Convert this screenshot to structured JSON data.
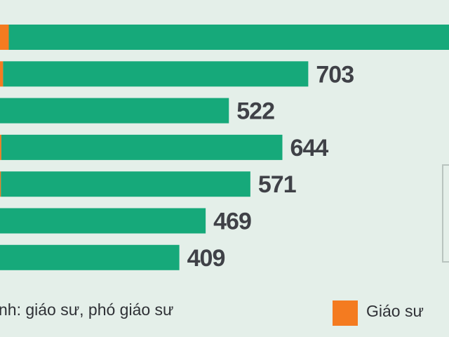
{
  "colors": {
    "background": "#e4efe9",
    "series_main": "#16a97a",
    "series_professor": "#f47b20",
    "label": "#3f4147"
  },
  "legend": {
    "left_text": "nh: giáo sư, phó giáo sư",
    "right_text": "Giáo sư"
  },
  "chart_data": {
    "type": "bar",
    "orientation": "horizontal",
    "stacked": true,
    "value_labels": [
      "",
      "703",
      "522",
      "644",
      "571",
      "469",
      "409"
    ],
    "series": [
      {
        "name": "Giáo sư",
        "values": [
          20,
          7,
          0,
          3,
          2,
          0,
          0
        ]
      },
      {
        "values": [
          1070,
          696,
          522,
          641,
          569,
          469,
          409
        ]
      }
    ]
  }
}
